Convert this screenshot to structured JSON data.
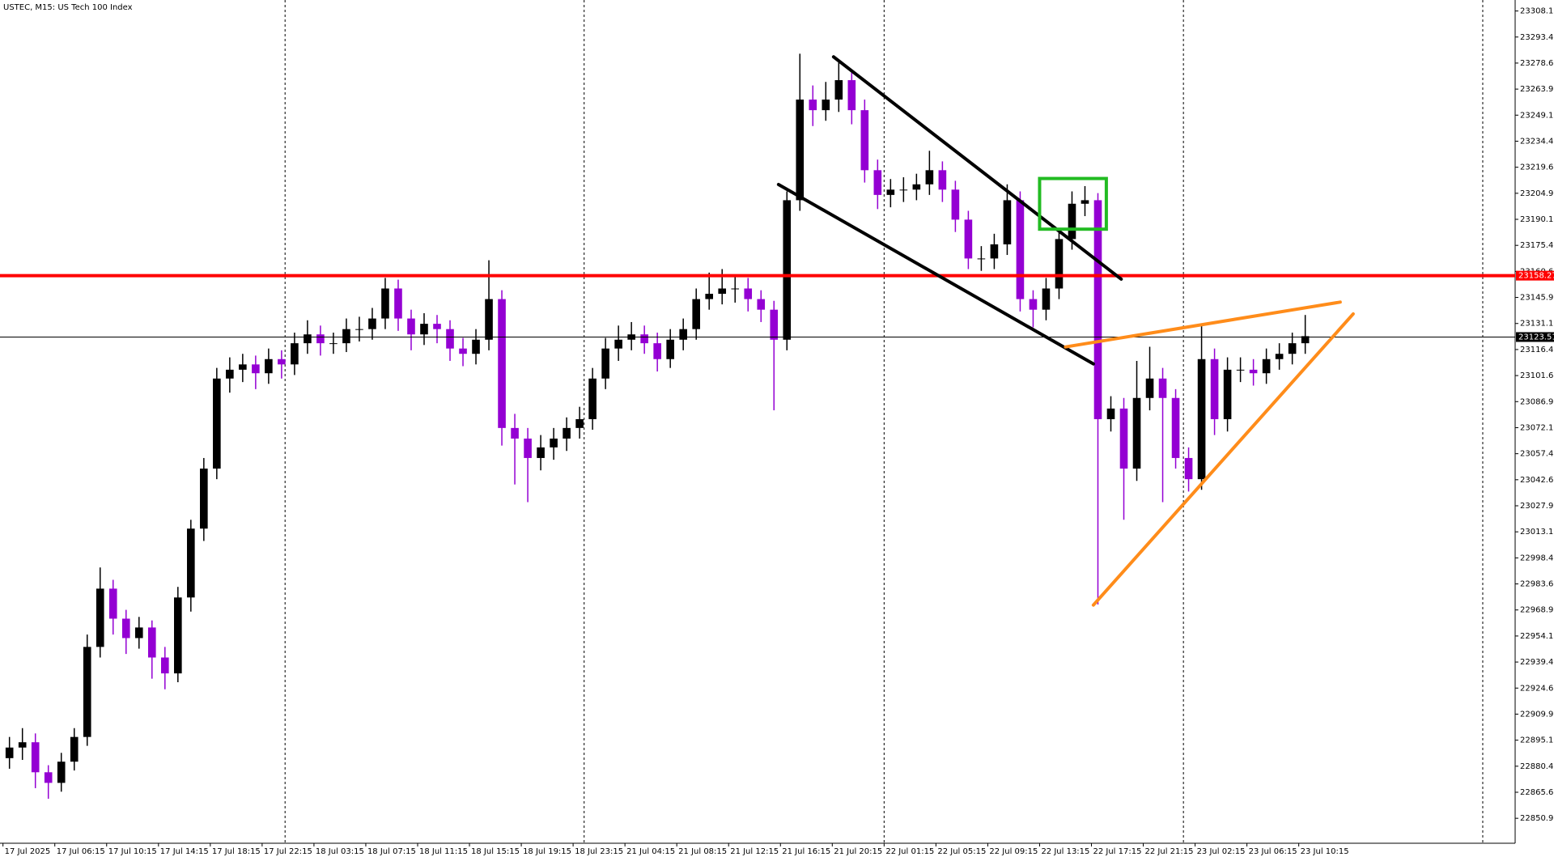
{
  "chart_data": {
    "type": "candlestick",
    "title": "USTEC, M15:  US Tech 100 Index",
    "up_color": "#000000",
    "down_color": "#9400d3",
    "open": [
      22885,
      22891,
      22894,
      22877,
      22871,
      22883,
      22897,
      22948,
      22981,
      22964,
      22953,
      22959,
      22942,
      22933,
      22976,
      23015,
      23049,
      23100,
      23105,
      23108,
      23103,
      23111,
      23108,
      23120,
      23125,
      23120,
      23120,
      23128,
      23128,
      23134,
      23151,
      23134,
      23125,
      23131,
      23128,
      23117,
      23114,
      23122,
      23145,
      23072,
      23066,
      23055,
      23061,
      23066,
      23072,
      23077,
      23100,
      23117,
      23122,
      23125,
      23120,
      23111,
      23122,
      23128,
      23145,
      23148,
      23151,
      23151,
      23145,
      23139,
      23122,
      23201,
      23258,
      23252,
      23258,
      23269,
      23252,
      23218,
      23204,
      23207,
      23207,
      23210,
      23218,
      23207,
      23190,
      23168,
      23168,
      23176,
      23201,
      23145,
      23139,
      23151,
      23179,
      23199,
      23201,
      23077,
      23083,
      23049,
      23089,
      23100,
      23089,
      23055,
      23043,
      23111,
      23077,
      23105,
      23105,
      23103,
      23111,
      23114,
      23120
    ],
    "high": [
      22897,
      22902,
      22899,
      22881,
      22888,
      22902,
      22955,
      22993,
      22986,
      22969,
      22965,
      22963,
      22948,
      22982,
      23020,
      23055,
      23106,
      23112,
      23114,
      23113,
      23117,
      23116,
      23126,
      23133,
      23130,
      23126,
      23134,
      23135,
      23140,
      23157,
      23156,
      23139,
      23137,
      23136,
      23133,
      23123,
      23128,
      23167,
      23150,
      23080,
      23072,
      23068,
      23072,
      23078,
      23084,
      23106,
      23123,
      23130,
      23132,
      23130,
      23126,
      23128,
      23134,
      23151,
      23160,
      23162,
      23158,
      23157,
      23150,
      23144,
      23206,
      23284,
      23266,
      23268,
      23280,
      23275,
      23258,
      23224,
      23213,
      23214,
      23216,
      23229,
      23223,
      23212,
      23195,
      23175,
      23182,
      23210,
      23206,
      23150,
      23157,
      23185,
      23206,
      23209,
      23205,
      23090,
      23089,
      23110,
      23118,
      23106,
      23094,
      23061,
      23131,
      23117,
      23112,
      23112,
      23111,
      23117,
      23120,
      23126,
      23136
    ],
    "low": [
      22879,
      22884,
      22868,
      22862,
      22866,
      22878,
      22892,
      22942,
      22955,
      22944,
      22947,
      22930,
      22924,
      22928,
      22968,
      23008,
      23043,
      23092,
      23098,
      23094,
      23097,
      23100,
      23102,
      23114,
      23113,
      23114,
      23115,
      23121,
      23122,
      23128,
      23127,
      23116,
      23119,
      23120,
      23110,
      23107,
      23108,
      23116,
      23062,
      23040,
      23030,
      23048,
      23054,
      23059,
      23066,
      23071,
      23094,
      23110,
      23116,
      23114,
      23104,
      23106,
      23116,
      23122,
      23139,
      23142,
      23143,
      23138,
      23132,
      23082,
      23116,
      23195,
      23243,
      23246,
      23251,
      23244,
      23211,
      23196,
      23197,
      23200,
      23201,
      23204,
      23200,
      23183,
      23162,
      23161,
      23162,
      23170,
      23138,
      23129,
      23133,
      23145,
      23173,
      23192,
      22972,
      23070,
      23020,
      23042,
      23082,
      23030,
      23049,
      23036,
      23037,
      23068,
      23070,
      23098,
      23096,
      23097,
      23105,
      23108,
      23114
    ],
    "close": [
      22891,
      22894,
      22877,
      22871,
      22883,
      22897,
      22948,
      22981,
      22964,
      22953,
      22959,
      22942,
      22933,
      22976,
      23015,
      23049,
      23100,
      23105,
      23108,
      23103,
      23111,
      23108,
      23120,
      23125,
      23120,
      23120,
      23128,
      23128,
      23134,
      23151,
      23134,
      23125,
      23131,
      23128,
      23117,
      23114,
      23122,
      23145,
      23072,
      23066,
      23055,
      23061,
      23066,
      23072,
      23077,
      23100,
      23117,
      23122,
      23125,
      23120,
      23111,
      23122,
      23128,
      23145,
      23148,
      23151,
      23151,
      23145,
      23139,
      23122,
      23201,
      23258,
      23252,
      23258,
      23269,
      23252,
      23218,
      23204,
      23207,
      23207,
      23210,
      23218,
      23207,
      23190,
      23168,
      23168,
      23176,
      23201,
      23145,
      23139,
      23151,
      23179,
      23199,
      23201,
      23077,
      23083,
      23049,
      23089,
      23100,
      23089,
      23055,
      23043,
      23111,
      23077,
      23105,
      23105,
      23103,
      23111,
      23114,
      23120,
      23124
    ],
    "xlim": [
      -0.73,
      116.2
    ],
    "xticks": [
      {
        "value": -0.5,
        "label": "17 Jul 2025"
      },
      {
        "value": 3.5,
        "label": "17 Jul 06:15"
      },
      {
        "value": 7.5,
        "label": "17 Jul 10:15"
      },
      {
        "value": 11.5,
        "label": "17 Jul 14:15"
      },
      {
        "value": 15.5,
        "label": "17 Jul 18:15"
      },
      {
        "value": 19.5,
        "label": "17 Jul 22:15"
      },
      {
        "value": 23.5,
        "label": "18 Jul 03:15"
      },
      {
        "value": 27.5,
        "label": "18 Jul 07:15"
      },
      {
        "value": 31.5,
        "label": "18 Jul 11:15"
      },
      {
        "value": 35.5,
        "label": "18 Jul 15:15"
      },
      {
        "value": 39.5,
        "label": "18 Jul 19:15"
      },
      {
        "value": 43.5,
        "label": "18 Jul 23:15"
      },
      {
        "value": 47.5,
        "label": "21 Jul 04:15"
      },
      {
        "value": 51.5,
        "label": "21 Jul 08:15"
      },
      {
        "value": 55.5,
        "label": "21 Jul 12:15"
      },
      {
        "value": 59.5,
        "label": "21 Jul 16:15"
      },
      {
        "value": 63.5,
        "label": "21 Jul 20:15"
      },
      {
        "value": 67.5,
        "label": "22 Jul 01:15"
      },
      {
        "value": 71.5,
        "label": "22 Jul 05:15"
      },
      {
        "value": 75.5,
        "label": "22 Jul 09:15"
      },
      {
        "value": 79.5,
        "label": "22 Jul 13:15"
      },
      {
        "value": 83.5,
        "label": "22 Jul 17:15"
      },
      {
        "value": 87.5,
        "label": "22 Jul 21:15"
      },
      {
        "value": 91.5,
        "label": "23 Jul 02:15"
      },
      {
        "value": 95.5,
        "label": "23 Jul 06:15"
      },
      {
        "value": 99.5,
        "label": "23 Jul 10:15"
      }
    ],
    "xgrid": [
      21.27,
      44.35,
      67.5,
      90.6,
      113.7
    ],
    "ylim": [
      22836.8,
      23314.4
    ],
    "yticks": [
      23308.18,
      23293.43,
      23278.68,
      23263.93,
      23249.18,
      23234.43,
      23219.68,
      23204.93,
      23190.18,
      23175.43,
      23160.68,
      23145.93,
      23131.18,
      23116.43,
      23101.68,
      23086.93,
      23072.18,
      23057.43,
      23042.68,
      23027.93,
      23013.18,
      22998.43,
      22983.68,
      22968.93,
      22954.18,
      22939.43,
      22924.68,
      22909.93,
      22895.18,
      22880.43,
      22865.68,
      22850.93
    ],
    "level_lines": [
      {
        "value": 23158.27,
        "color": "#ff0000"
      },
      {
        "value": 23123.51,
        "color": "#000000"
      }
    ],
    "trend_lines": [
      {
        "color": "#000000",
        "start": [
          63.6,
          23282.2
        ],
        "end": [
          85.8,
          23156.3
        ]
      },
      {
        "color": "#000000",
        "start": [
          59.35,
          23209.9
        ],
        "end": [
          83.65,
          23108.3
        ]
      },
      {
        "color": "#ff8c1a",
        "start": [
          81.5,
          23117.9
        ],
        "end": [
          102.7,
          23143.3
        ]
      },
      {
        "color": "#ff8c1a",
        "start": [
          83.65,
          22971.7
        ],
        "end": [
          103.7,
          23136.6
        ]
      }
    ],
    "boxes": [
      {
        "color": "#22bb22",
        "x": [
          79.5,
          84.65
        ],
        "y": [
          23213.3,
          23184.6
        ]
      }
    ]
  }
}
